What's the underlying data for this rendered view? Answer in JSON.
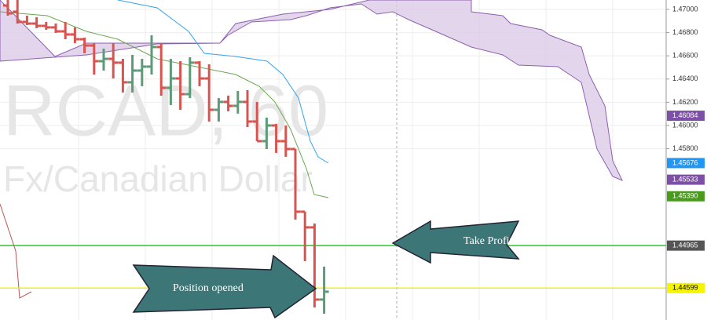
{
  "chart_data": {
    "type": "ohlc",
    "watermark": [
      "RCAD, 60",
      "Fx/Canadian Dollar"
    ],
    "annotations": [
      "Take Profit",
      "Position opened"
    ],
    "up_color": "#5d9a78",
    "down_color": "#d9534f",
    "open": [
      1.47034,
      1.4698,
      1.46892,
      1.46878,
      1.46858,
      1.46845,
      1.46811,
      1.46784,
      1.46743,
      1.46689,
      1.46554,
      1.46574,
      1.46541,
      1.46372,
      1.46473,
      1.46507,
      1.46676,
      1.46324,
      1.46405,
      1.4627,
      1.46541,
      1.46405,
      1.46135,
      1.46203,
      1.46169,
      1.46203,
      1.46034,
      1.45865,
      1.46,
      1.45865,
      1.45797,
      1.45257,
      1.45122,
      1.445
    ],
    "high": [
      1.47081,
      1.47081,
      1.46946,
      1.46932,
      1.46892,
      1.46878,
      1.46892,
      1.46845,
      1.46757,
      1.46709,
      1.46662,
      1.46709,
      1.46574,
      1.46608,
      1.46574,
      1.46777,
      1.46709,
      1.46574,
      1.46554,
      1.46588,
      1.46554,
      1.46527,
      1.46236,
      1.46257,
      1.46297,
      1.46304,
      1.46203,
      1.46068,
      1.46014,
      1.46,
      1.45797,
      1.45257,
      1.45155,
      1.44784
    ],
    "low": [
      1.46946,
      1.46878,
      1.46865,
      1.46838,
      1.46824,
      1.46797,
      1.46743,
      1.46709,
      1.46622,
      1.46439,
      1.46473,
      1.46405,
      1.46284,
      1.46284,
      1.46338,
      1.46439,
      1.46257,
      1.46176,
      1.46135,
      1.46236,
      1.46338,
      1.46034,
      1.46034,
      1.46122,
      1.46102,
      1.45986,
      1.45865,
      1.45797,
      1.45764,
      1.4573,
      1.45189,
      1.44831,
      1.44432,
      1.44378
    ],
    "close": [
      1.46966,
      1.46892,
      1.46878,
      1.46858,
      1.46845,
      1.46811,
      1.46784,
      1.46743,
      1.46689,
      1.46554,
      1.46574,
      1.46541,
      1.46372,
      1.46473,
      1.46507,
      1.46676,
      1.46324,
      1.46405,
      1.4627,
      1.46541,
      1.46405,
      1.46135,
      1.46203,
      1.46169,
      1.46203,
      1.46034,
      1.45865,
      1.46,
      1.45865,
      1.45797,
      1.45257,
      1.45122,
      1.445,
      1.44568
    ],
    "ylim": [
      1.44324,
      1.47081
    ],
    "yticks": [
      {
        "value": 1.47,
        "label": "1.47000"
      },
      {
        "value": 1.468,
        "label": "1.46800"
      },
      {
        "value": 1.466,
        "label": "1.46600"
      },
      {
        "value": 1.464,
        "label": "1.46400"
      },
      {
        "value": 1.462,
        "label": "1.46200"
      },
      {
        "value": 1.46,
        "label": "1.46000"
      },
      {
        "value": 1.458,
        "label": "1.45800"
      }
    ],
    "price_badges": [
      {
        "value": 1.46084,
        "color": "#7e4fa6"
      },
      {
        "value": 1.45676,
        "color": "#2196f3"
      },
      {
        "value": 1.45533,
        "color": "#7e4fa6"
      },
      {
        "value": 1.4539,
        "label": "1.45390",
        "color": "#4a9a1e"
      },
      {
        "value": 1.44965,
        "color": "#555555"
      },
      {
        "value": 1.44599,
        "color": "#f5f500"
      }
    ],
    "levels": [
      {
        "value": 1.44965,
        "color": "#22cc22"
      },
      {
        "value": 1.44599,
        "color": "#f0f000"
      }
    ],
    "grid": true
  }
}
